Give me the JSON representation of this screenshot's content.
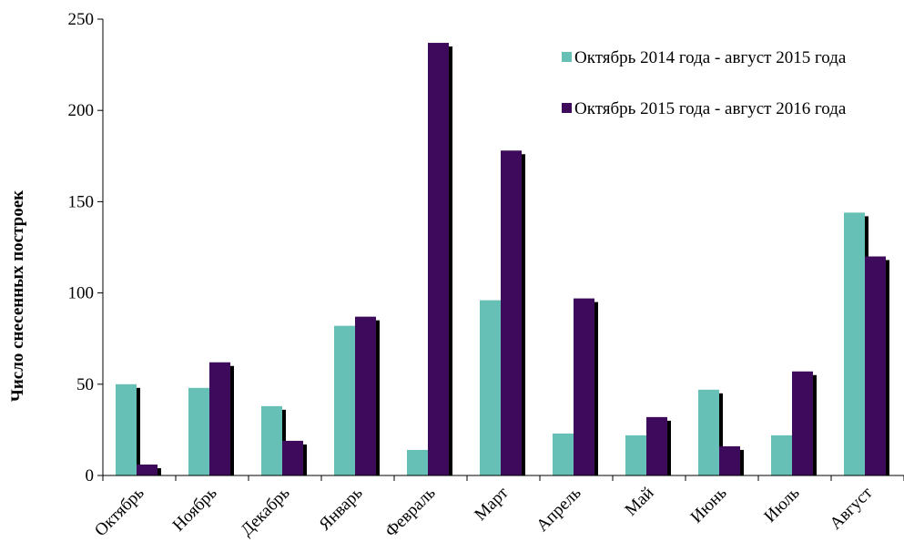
{
  "chart_data": {
    "type": "bar",
    "ylabel": "Число снесенных построек",
    "ylim": [
      0,
      250
    ],
    "yticks": [
      0,
      50,
      100,
      150,
      200,
      250
    ],
    "categories": [
      "Октябрь",
      "Ноябрь",
      "Декабрь",
      "Январь",
      "Февраль",
      "Март",
      "Апрель",
      "Май",
      "Июнь",
      "Июль",
      "Август"
    ],
    "series": [
      {
        "name": "Октябрь 2014 года - август 2015 года",
        "color": "#66c0b6",
        "values": [
          50,
          48,
          38,
          82,
          14,
          96,
          23,
          22,
          47,
          22,
          144
        ]
      },
      {
        "name": "Октябрь 2015 года - август 2016 года",
        "color": "#3d0a5c",
        "values": [
          6,
          62,
          19,
          87,
          237,
          178,
          97,
          32,
          16,
          57,
          120
        ]
      }
    ],
    "grid": false,
    "legend_position": "top-right",
    "shadow_color": "#000000"
  }
}
